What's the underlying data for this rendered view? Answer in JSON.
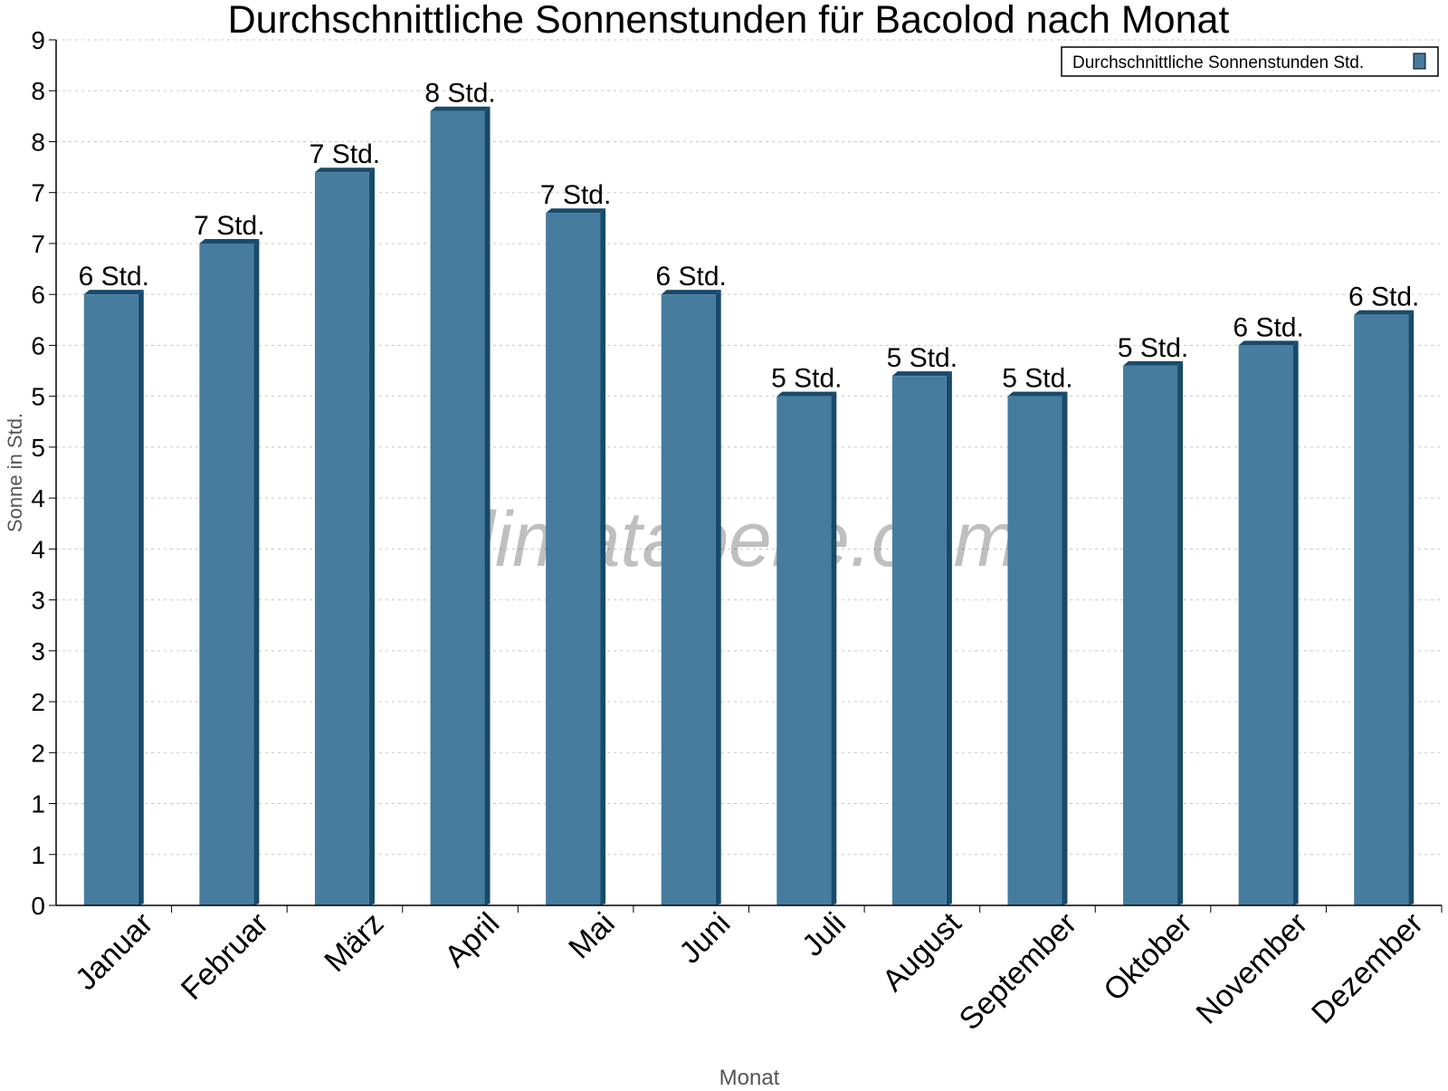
{
  "chart_data": {
    "type": "bar",
    "title": "Durchschnittliche Sonnenstunden für Bacolod nach Monat",
    "xlabel": "Monat",
    "ylabel": "Sonne in Std.",
    "categories": [
      "Januar",
      "Februar",
      "März",
      "April",
      "Mai",
      "Juni",
      "Juli",
      "August",
      "September",
      "Oktober",
      "November",
      "Dezember"
    ],
    "series": [
      {
        "name": "Durchschnittliche Sonnenstunden Std.",
        "values": [
          6.0,
          6.5,
          7.2,
          7.8,
          6.8,
          6.0,
          5.0,
          5.2,
          5.0,
          5.3,
          5.5,
          5.8
        ],
        "labels": [
          "6 Std.",
          "7 Std.",
          "7 Std.",
          "8 Std.",
          "7 Std.",
          "6 Std.",
          "5 Std.",
          "5 Std.",
          "5 Std.",
          "5 Std.",
          "6 Std.",
          "6 Std."
        ]
      }
    ],
    "yticks": [
      0,
      0.5,
      1,
      1.5,
      2,
      2.5,
      3,
      3.5,
      4,
      4.5,
      5,
      5.5,
      6,
      6.5,
      7,
      7.5,
      8,
      8.5
    ],
    "ytick_labels": [
      "0",
      "1",
      "1",
      "2",
      "2",
      "3",
      "3",
      "4",
      "4",
      "5",
      "5",
      "6",
      "6",
      "7",
      "7",
      "8",
      "8",
      "9"
    ],
    "ylim": [
      0,
      8.5
    ],
    "grid": true,
    "legend_position": "top-right",
    "watermark": "klimatabelle.com",
    "colors": {
      "bar": "#467c9e",
      "bar_side": "#174a6b",
      "grid": "#c8c8c8"
    }
  }
}
